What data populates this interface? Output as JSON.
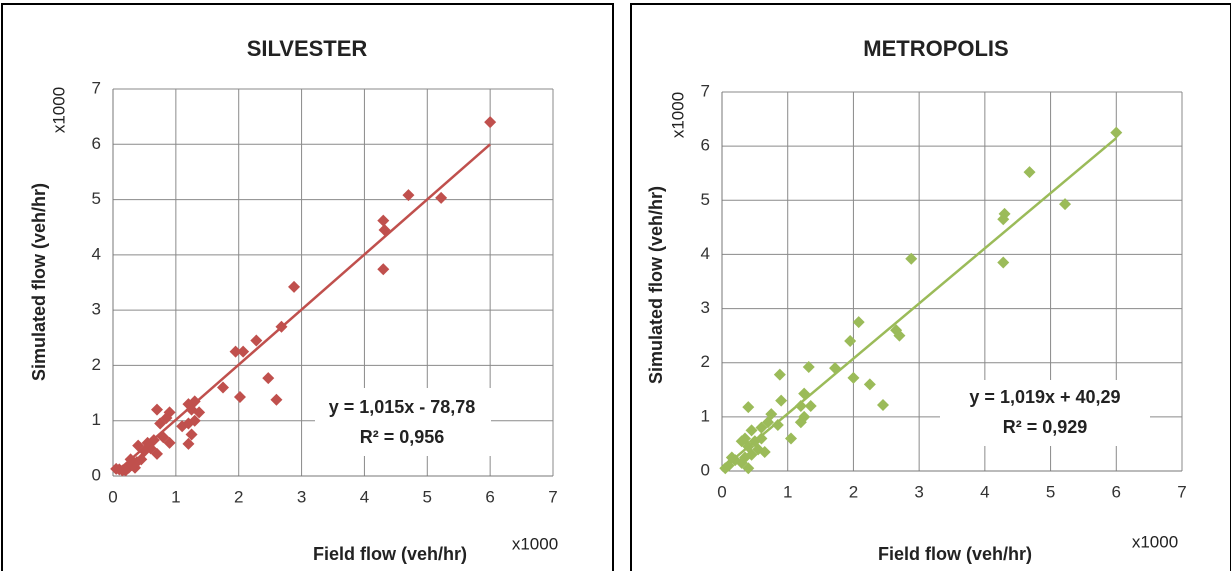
{
  "chart_data": [
    {
      "type": "scatter",
      "title": "SILVESTER",
      "x_label": "Field flow (veh/hr)",
      "y_label": "Simulated flow (veh/hr)",
      "x_multiplier": "x1000",
      "y_multiplier": "x1000",
      "annotations": [
        "y = 1,015x - 78,78",
        "R² = 0,956"
      ],
      "xlim": [
        0,
        7
      ],
      "ylim": [
        0,
        7
      ],
      "xticks": [
        0,
        1,
        2,
        3,
        4,
        5,
        6,
        7
      ],
      "yticks": [
        0,
        1,
        2,
        3,
        4,
        5,
        6,
        7
      ],
      "grid": true,
      "color": "#c0504d",
      "x": [
        6,
        4.7,
        5.22,
        4.3,
        4.32,
        4.3,
        2.88,
        2.68,
        2.28,
        1.95,
        2.07,
        2.47,
        2.6,
        2.02,
        1.75,
        1.37,
        1.3,
        1.2,
        1.25,
        1.1,
        1.2,
        1.25,
        1.2,
        1.3,
        0.9,
        0.85,
        0.7,
        0.75,
        0.8,
        0.9,
        0.65,
        0.6,
        0.55,
        0.7,
        0.5,
        0.4,
        0.45,
        0.38,
        0.3,
        0.35,
        0.25,
        0.2,
        0.1,
        0.15,
        0.28,
        0.05
      ],
      "y": [
        6.4,
        5.08,
        5.03,
        4.62,
        4.45,
        3.74,
        3.42,
        2.7,
        2.45,
        2.25,
        2.25,
        1.77,
        1.38,
        1.43,
        1.6,
        1.15,
        1.35,
        1.3,
        1.2,
        0.9,
        0.95,
        0.75,
        0.58,
        1.0,
        1.15,
        1.05,
        1.2,
        0.95,
        0.7,
        0.6,
        0.65,
        0.5,
        0.6,
        0.4,
        0.45,
        0.55,
        0.3,
        0.25,
        0.2,
        0.15,
        0.15,
        0.1,
        0.12,
        0.1,
        0.3,
        0.13
      ],
      "trendline": {
        "x": [
          0.08,
          6
        ],
        "y": [
          0.1,
          6.0
        ]
      }
    },
    {
      "type": "scatter",
      "title": "METROPOLIS",
      "x_label": "Field flow (veh/hr)",
      "y_label": "Simulated flow (veh/hr)",
      "x_multiplier": "x1000",
      "y_multiplier": "x1000",
      "annotations": [
        "y = 1,019x + 40,29",
        "R² = 0,929"
      ],
      "xlim": [
        0,
        7
      ],
      "ylim": [
        0,
        7
      ],
      "xticks": [
        0,
        1,
        2,
        3,
        4,
        5,
        6,
        7
      ],
      "yticks": [
        0,
        1,
        2,
        3,
        4,
        5,
        6,
        7
      ],
      "grid": true,
      "color": "#9bbb59",
      "x": [
        6,
        4.68,
        5.22,
        4.3,
        4.28,
        4.28,
        2.88,
        2.08,
        2.65,
        2.7,
        1.95,
        2.25,
        2.0,
        2.45,
        1.72,
        1.32,
        0.88,
        1.25,
        1.35,
        1.2,
        1.25,
        1.2,
        0.9,
        0.75,
        0.7,
        0.85,
        0.6,
        1.05,
        0.6,
        0.5,
        0.55,
        0.4,
        0.45,
        0.35,
        0.3,
        0.4,
        0.45,
        0.35,
        0.3,
        0.2,
        0.15,
        0.1,
        0.05,
        0.4,
        0.65
      ],
      "y": [
        6.25,
        5.52,
        4.93,
        4.75,
        4.65,
        3.85,
        3.92,
        2.75,
        2.6,
        2.5,
        2.4,
        1.6,
        1.72,
        1.22,
        1.9,
        1.92,
        1.78,
        1.43,
        1.2,
        1.2,
        1.0,
        0.9,
        1.3,
        1.05,
        0.9,
        0.85,
        0.8,
        0.6,
        0.6,
        0.55,
        0.4,
        1.18,
        0.75,
        0.6,
        0.55,
        0.45,
        0.3,
        0.25,
        0.15,
        0.2,
        0.25,
        0.1,
        0.05,
        0.05,
        0.35
      ],
      "trendline": {
        "x": [
          0.03,
          6
        ],
        "y": [
          0.07,
          6.15
        ]
      }
    }
  ]
}
